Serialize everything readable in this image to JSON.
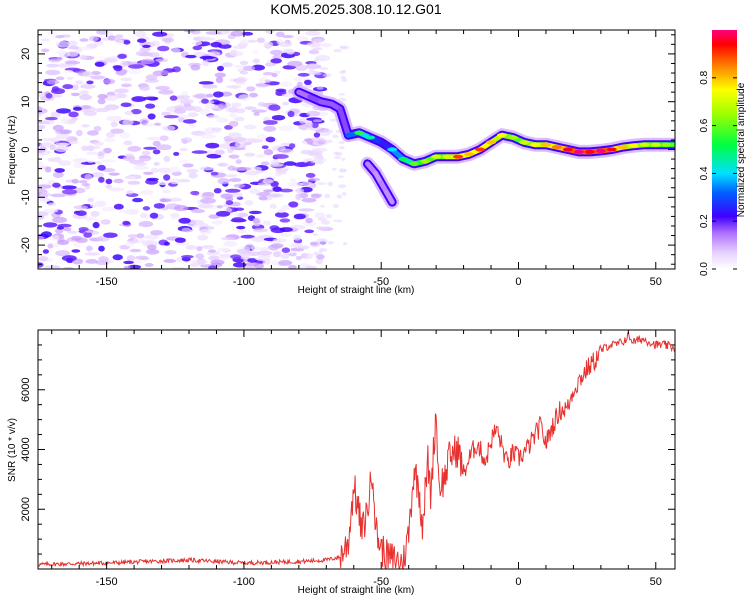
{
  "title": "KOM5.2025.308.10.12.G01",
  "colors": {
    "line": "#e8312f",
    "axis": "#000000",
    "purple": "#8a2be2",
    "lightPurple": "#c6a6f2"
  },
  "chart_data": [
    {
      "type": "heatmap",
      "xlabel": "Height of straight line (km)",
      "ylabel": "Frequency (Hz)",
      "xlim": [
        -175,
        57
      ],
      "ylim": [
        -25,
        25
      ],
      "xticks": [
        -150,
        -100,
        -50,
        0,
        50
      ],
      "yticks": [
        -20,
        -10,
        0,
        10,
        20
      ],
      "colorbar": {
        "label": "Normalized spectral amplitude",
        "range": [
          0.0,
          1.0
        ],
        "ticks": [
          0.0,
          0.2,
          0.4,
          0.6,
          0.8
        ],
        "tick_labels": [
          "0.0",
          "0.2",
          "0.4",
          "0.6",
          "0.8"
        ]
      },
      "noise_region": {
        "x_range": [
          -175,
          -70
        ],
        "freq_range": [
          -25,
          25
        ],
        "amplitude": [
          0.02,
          0.12
        ]
      },
      "ridge": [
        {
          "x": -80,
          "f": 12.0,
          "a": 0.1
        },
        {
          "x": -76,
          "f": 11.0,
          "a": 0.2
        },
        {
          "x": -72,
          "f": 10.0,
          "a": 0.15
        },
        {
          "x": -68,
          "f": 9.5,
          "a": 0.18
        },
        {
          "x": -65,
          "f": 8.5,
          "a": 0.15
        },
        {
          "x": -62,
          "f": 3.0,
          "a": 0.2
        },
        {
          "x": -58,
          "f": 3.5,
          "a": 0.45
        },
        {
          "x": -54,
          "f": 2.5,
          "a": 0.35
        },
        {
          "x": -50,
          "f": 1.5,
          "a": 0.2
        },
        {
          "x": -46,
          "f": 0.0,
          "a": 0.3
        },
        {
          "x": -42,
          "f": -2.0,
          "a": 0.4
        },
        {
          "x": -38,
          "f": -3.0,
          "a": 0.5
        },
        {
          "x": -34,
          "f": -2.5,
          "a": 0.55
        },
        {
          "x": -30,
          "f": -1.5,
          "a": 0.6
        },
        {
          "x": -26,
          "f": -1.5,
          "a": 0.6
        },
        {
          "x": -22,
          "f": -1.5,
          "a": 0.8
        },
        {
          "x": -18,
          "f": -1.0,
          "a": 0.7
        },
        {
          "x": -14,
          "f": 0.0,
          "a": 0.8
        },
        {
          "x": -10,
          "f": 1.5,
          "a": 0.7
        },
        {
          "x": -6,
          "f": 3.0,
          "a": 0.65
        },
        {
          "x": -2,
          "f": 2.5,
          "a": 0.55
        },
        {
          "x": 2,
          "f": 1.5,
          "a": 0.6
        },
        {
          "x": 6,
          "f": 1.0,
          "a": 0.65
        },
        {
          "x": 10,
          "f": 1.0,
          "a": 0.7
        },
        {
          "x": 14,
          "f": 0.5,
          "a": 0.75
        },
        {
          "x": 18,
          "f": 0.0,
          "a": 0.85
        },
        {
          "x": 22,
          "f": -0.5,
          "a": 0.9
        },
        {
          "x": 26,
          "f": -0.5,
          "a": 0.85
        },
        {
          "x": 30,
          "f": -0.3,
          "a": 0.9
        },
        {
          "x": 34,
          "f": 0.0,
          "a": 0.85
        },
        {
          "x": 38,
          "f": 0.5,
          "a": 0.7
        },
        {
          "x": 42,
          "f": 0.8,
          "a": 0.65
        },
        {
          "x": 46,
          "f": 1.0,
          "a": 0.6
        },
        {
          "x": 50,
          "f": 1.0,
          "a": 0.6
        },
        {
          "x": 54,
          "f": 1.0,
          "a": 0.55
        },
        {
          "x": 57,
          "f": 1.0,
          "a": 0.5
        }
      ],
      "branch": [
        {
          "x": -55,
          "f": -3.0,
          "a": 0.15
        },
        {
          "x": -52,
          "f": -5.0,
          "a": 0.12
        },
        {
          "x": -50,
          "f": -7.0,
          "a": 0.12
        },
        {
          "x": -48,
          "f": -9.0,
          "a": 0.15
        },
        {
          "x": -46,
          "f": -11.0,
          "a": 0.1
        }
      ]
    },
    {
      "type": "line",
      "xlabel": "Height of straight line (km)",
      "ylabel": "SNR (10 * v/v)",
      "xlim": [
        -175,
        57
      ],
      "ylim": [
        0,
        8000
      ],
      "xticks": [
        -150,
        -100,
        -50,
        0,
        50
      ],
      "yticks": [
        2000,
        4000,
        6000
      ],
      "series": [
        {
          "name": "SNR",
          "x": [
            -175,
            -150,
            -120,
            -100,
            -80,
            -70,
            -65,
            -62,
            -60,
            -58,
            -57,
            -55,
            -53,
            -52,
            -50,
            -48,
            -45,
            -42,
            -40,
            -38,
            -36,
            -35,
            -33,
            -32,
            -30,
            -29,
            -27,
            -25,
            -22,
            -20,
            -17,
            -15,
            -12,
            -10,
            -8,
            -6,
            -4,
            -2,
            0,
            3,
            5,
            8,
            10,
            12,
            15,
            18,
            20,
            22,
            25,
            28,
            30,
            33,
            35,
            38,
            40,
            42,
            45,
            48,
            50,
            53,
            57
          ],
          "y": [
            150,
            200,
            300,
            200,
            250,
            300,
            400,
            900,
            2800,
            1800,
            1200,
            2000,
            3400,
            1300,
            700,
            400,
            300,
            200,
            1200,
            3400,
            2500,
            1500,
            3600,
            2500,
            5300,
            2800,
            3000,
            3800,
            4000,
            3200,
            3900,
            4200,
            3600,
            4300,
            4700,
            4100,
            3500,
            3900,
            3700,
            4000,
            4300,
            4800,
            4200,
            4700,
            5300,
            5400,
            6000,
            6300,
            6700,
            7000,
            7300,
            7500,
            7500,
            7600,
            7800,
            7600,
            7700,
            7600,
            7500,
            7500,
            7400
          ]
        }
      ]
    }
  ]
}
